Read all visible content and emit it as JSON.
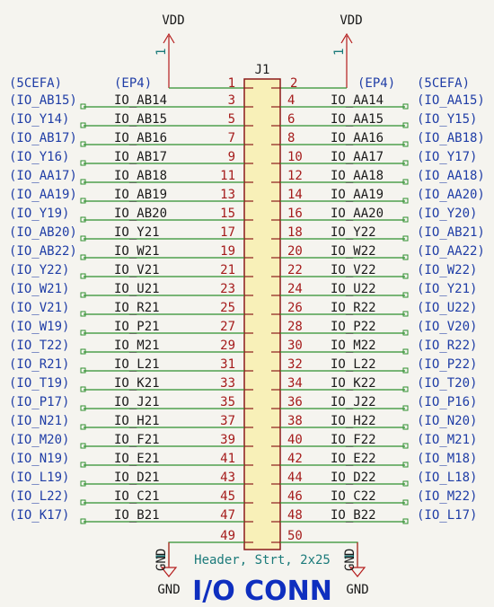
{
  "power": {
    "vdd_left": "VDD",
    "vdd_right": "VDD",
    "gnd_left": "GND",
    "gnd_right": "GND",
    "pin_one": "1"
  },
  "connector": {
    "ref": "J1",
    "value": "Header, Strt, 2x25",
    "title": "I/O CONN"
  },
  "header_row": {
    "left_far": "(5CEFA)",
    "left_near": "(EP4)",
    "pin_left": "1",
    "pin_right": "2",
    "right_near": "(EP4)",
    "right_far": "(5CEFA)"
  },
  "rows": [
    {
      "lf": "(IO_AB15)",
      "ln": "IO_AB14",
      "pl": "3",
      "pr": "4",
      "rn": "IO_AA14",
      "rf": "(IO_AA15)"
    },
    {
      "lf": "(IO_Y14)",
      "ln": "IO_AB15",
      "pl": "5",
      "pr": "6",
      "rn": "IO_AA15",
      "rf": "(IO_Y15)"
    },
    {
      "lf": "(IO_AB17)",
      "ln": "IO_AB16",
      "pl": "7",
      "pr": "8",
      "rn": "IO_AA16",
      "rf": "(IO_AB18)"
    },
    {
      "lf": "(IO_Y16)",
      "ln": "IO_AB17",
      "pl": "9",
      "pr": "10",
      "rn": "IO_AA17",
      "rf": "(IO_Y17)"
    },
    {
      "lf": "(IO_AA17)",
      "ln": "IO_AB18",
      "pl": "11",
      "pr": "12",
      "rn": "IO_AA18",
      "rf": "(IO_AA18)"
    },
    {
      "lf": "(IO_AA19)",
      "ln": "IO_AB19",
      "pl": "13",
      "pr": "14",
      "rn": "IO_AA19",
      "rf": "(IO_AA20)"
    },
    {
      "lf": "(IO_Y19)",
      "ln": "IO_AB20",
      "pl": "15",
      "pr": "16",
      "rn": "IO_AA20",
      "rf": "(IO_Y20)"
    },
    {
      "lf": "(IO_AB20)",
      "ln": "IO_Y21",
      "pl": "17",
      "pr": "18",
      "rn": "IO_Y22",
      "rf": "(IO_AB21)"
    },
    {
      "lf": "(IO_AB22)",
      "ln": "IO_W21",
      "pl": "19",
      "pr": "20",
      "rn": "IO_W22",
      "rf": "(IO_AA22)"
    },
    {
      "lf": "(IO_Y22)",
      "ln": "IO_V21",
      "pl": "21",
      "pr": "22",
      "rn": "IO_V22",
      "rf": "(IO_W22)"
    },
    {
      "lf": "(IO_W21)",
      "ln": "IO_U21",
      "pl": "23",
      "pr": "24",
      "rn": "IO_U22",
      "rf": "(IO_Y21)"
    },
    {
      "lf": "(IO_V21)",
      "ln": "IO_R21",
      "pl": "25",
      "pr": "26",
      "rn": "IO_R22",
      "rf": "(IO_U22)"
    },
    {
      "lf": "(IO_W19)",
      "ln": "IO_P21",
      "pl": "27",
      "pr": "28",
      "rn": "IO_P22",
      "rf": "(IO_V20)"
    },
    {
      "lf": "(IO_T22)",
      "ln": "IO_M21",
      "pl": "29",
      "pr": "30",
      "rn": "IO_M22",
      "rf": "(IO_R22)"
    },
    {
      "lf": "(IO_R21)",
      "ln": "IO_L21",
      "pl": "31",
      "pr": "32",
      "rn": "IO_L22",
      "rf": "(IO_P22)"
    },
    {
      "lf": "(IO_T19)",
      "ln": "IO_K21",
      "pl": "33",
      "pr": "34",
      "rn": "IO_K22",
      "rf": "(IO_T20)"
    },
    {
      "lf": "(IO_P17)",
      "ln": "IO_J21",
      "pl": "35",
      "pr": "36",
      "rn": "IO_J22",
      "rf": "(IO_P16)"
    },
    {
      "lf": "(IO_N21)",
      "ln": "IO_H21",
      "pl": "37",
      "pr": "38",
      "rn": "IO_H22",
      "rf": "(IO_N20)"
    },
    {
      "lf": "(IO_M20)",
      "ln": "IO_F21",
      "pl": "39",
      "pr": "40",
      "rn": "IO_F22",
      "rf": "(IO_M21)"
    },
    {
      "lf": "(IO_N19)",
      "ln": "IO_E21",
      "pl": "41",
      "pr": "42",
      "rn": "IO_E22",
      "rf": "(IO_M18)"
    },
    {
      "lf": "(IO_L19)",
      "ln": "IO_D21",
      "pl": "43",
      "pr": "44",
      "rn": "IO_D22",
      "rf": "(IO_L18)"
    },
    {
      "lf": "(IO_L22)",
      "ln": "IO_C21",
      "pl": "45",
      "pr": "46",
      "rn": "IO_C22",
      "rf": "(IO_M22)"
    },
    {
      "lf": "(IO_K17)",
      "ln": "IO_B21",
      "pl": "47",
      "pr": "48",
      "rn": "IO_B22",
      "rf": "(IO_L17)"
    }
  ],
  "bottom_row": {
    "pin_left": "49",
    "pin_right": "50"
  },
  "colors": {
    "wire": "#2f8f2f",
    "body_fill": "#f8f0b8",
    "body_stroke": "#8b1a1a",
    "pin": "#8b1a1a",
    "label": "#1f3da6",
    "power": "#b51d1d"
  }
}
